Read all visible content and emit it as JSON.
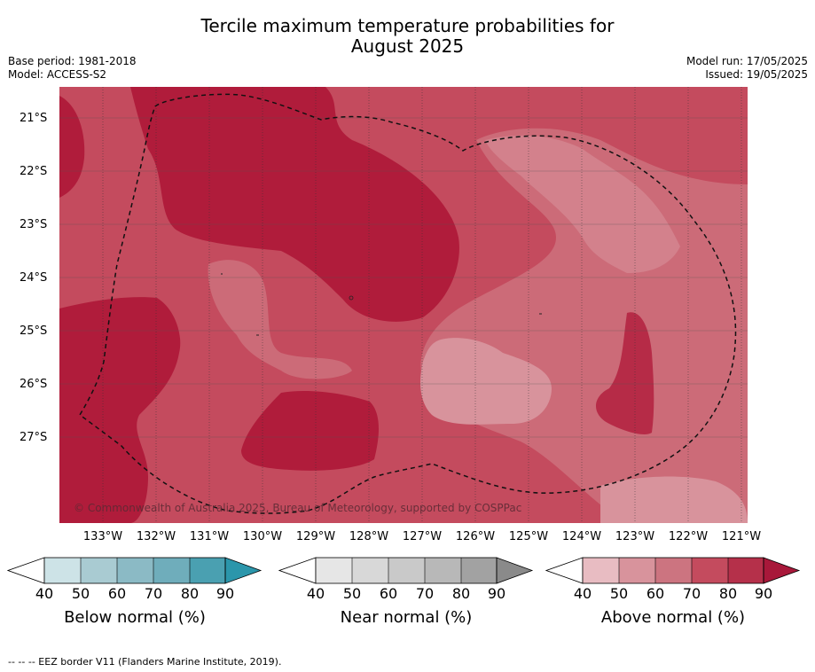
{
  "title": {
    "line1": "Tercile maximum temperature probabilities for",
    "line2": "August 2025"
  },
  "meta": {
    "base_period": "Base period: 1981-2018",
    "model": "Model: ACCESS-S2",
    "model_run": "Model run: 17/05/2025",
    "issued": "Issued: 19/05/2025"
  },
  "map": {
    "latitude_labels": [
      "21°S",
      "22°S",
      "23°S",
      "24°S",
      "25°S",
      "26°S",
      "27°S"
    ],
    "longitude_labels": [
      "133°W",
      "132°W",
      "131°W",
      "130°W",
      "129°W",
      "128°W",
      "127°W",
      "126°W",
      "125°W",
      "124°W",
      "123°W",
      "122°W",
      "121°W"
    ],
    "copyright": "© Commonwealth of Australia 2025, Bureau of Meteorology, supported by COSPPac",
    "border_style": "dashed",
    "colors": {
      "above_70_80": "#c44b5e",
      "above_80_90": "#b01c3b",
      "above_60_70": "#cc6b78",
      "above_50_60": "#d8939c"
    }
  },
  "legends": [
    {
      "label": "Below normal (%)",
      "ticks": [
        "40",
        "50",
        "60",
        "70",
        "80",
        "90"
      ],
      "colors": [
        "#cde3e7",
        "#a9cbd2",
        "#8bbac5",
        "#6fadbb",
        "#4aa0b1",
        "#2b96ab"
      ]
    },
    {
      "label": "Near normal (%)",
      "ticks": [
        "40",
        "50",
        "60",
        "70",
        "80",
        "90"
      ],
      "colors": [
        "#e6e6e6",
        "#d8d8d8",
        "#c9c9c9",
        "#b8b8b8",
        "#a2a2a2",
        "#8a8a8a"
      ]
    },
    {
      "label": "Above normal (%)",
      "ticks": [
        "40",
        "50",
        "60",
        "70",
        "80",
        "90"
      ],
      "colors": [
        "#e8bcc2",
        "#d8939c",
        "#cc7480",
        "#c44b5e",
        "#b5304a",
        "#a8183a"
      ]
    }
  ],
  "footer": "--  --  -- EEZ border V11 (Flanders Marine Institute, 2019)."
}
